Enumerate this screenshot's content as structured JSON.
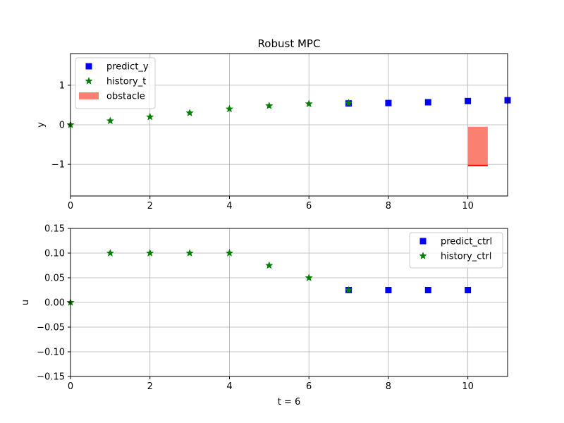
{
  "figure": {
    "title": "Robust MPC",
    "xlabel": "t = 6"
  },
  "chart_data": [
    {
      "type": "scatter",
      "title": "Robust MPC",
      "xlabel": "",
      "ylabel": "y",
      "xlim": [
        0,
        11
      ],
      "ylim": [
        -1.8,
        1.8
      ],
      "xticks": [
        0,
        2,
        4,
        6,
        8,
        10
      ],
      "yticks": [
        -1,
        0,
        1
      ],
      "ytick_labels": [
        "−1",
        "0",
        "1"
      ],
      "grid": true,
      "legend": "top-left",
      "series": [
        {
          "name": "predict_y",
          "marker": "square",
          "color": "#0000ff",
          "x": [
            7,
            8,
            9,
            10,
            11
          ],
          "y": [
            0.54,
            0.55,
            0.57,
            0.6,
            0.62
          ]
        },
        {
          "name": "history_t",
          "marker": "star",
          "color": "#008000",
          "x": [
            0,
            1,
            2,
            3,
            4,
            5,
            6,
            7
          ],
          "y": [
            0.0,
            0.1,
            0.2,
            0.3,
            0.4,
            0.48,
            0.53,
            0.55
          ]
        }
      ],
      "obstacle": {
        "name": "obstacle",
        "color": "#fa8072",
        "x": [
          10.0,
          10.5
        ],
        "y": [
          -1.03,
          -0.05
        ],
        "edge_color": "#ff0000"
      }
    },
    {
      "type": "scatter",
      "title": "",
      "xlabel": "t = 6",
      "ylabel": "u",
      "xlim": [
        0,
        11
      ],
      "ylim": [
        -0.15,
        0.15
      ],
      "xticks": [
        0,
        2,
        4,
        6,
        8,
        10
      ],
      "yticks": [
        -0.15,
        -0.1,
        -0.05,
        0.0,
        0.05,
        0.1,
        0.15
      ],
      "ytick_labels": [
        "−0.15",
        "−0.10",
        "−0.05",
        "0.00",
        "0.05",
        "0.10",
        "0.15"
      ],
      "grid": true,
      "legend": "top-right",
      "series": [
        {
          "name": "predict_ctrl",
          "marker": "square",
          "color": "#0000ff",
          "x": [
            7,
            8,
            9,
            10
          ],
          "y": [
            0.025,
            0.025,
            0.025,
            0.025
          ]
        },
        {
          "name": "history_ctrl",
          "marker": "star",
          "color": "#008000",
          "x": [
            0,
            1,
            2,
            3,
            4,
            5,
            6,
            7
          ],
          "y": [
            0.0,
            0.1,
            0.1,
            0.1,
            0.1,
            0.075,
            0.05,
            0.025
          ]
        }
      ]
    }
  ]
}
